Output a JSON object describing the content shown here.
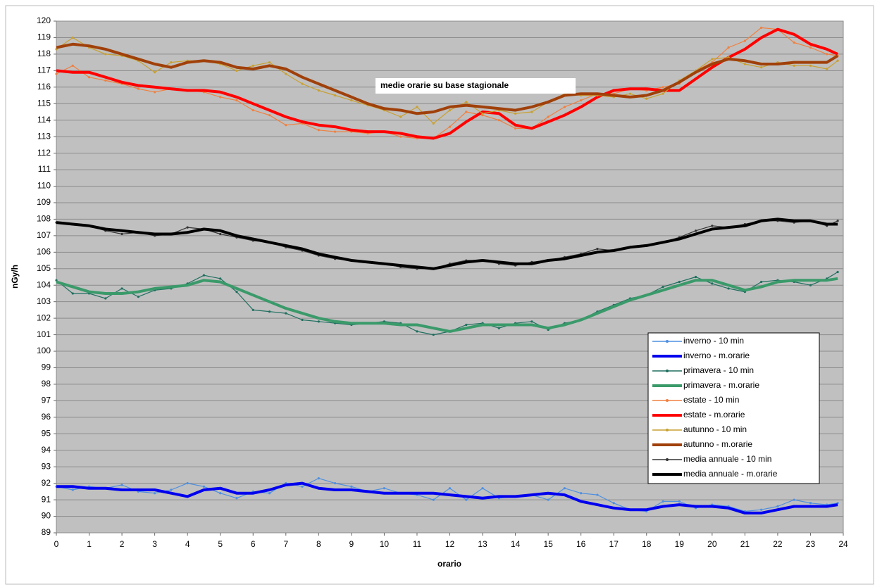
{
  "chart_data": {
    "type": "line",
    "annotation": "medie orarie su base stagionale",
    "x_label": "orario",
    "y_label": "nGy/h",
    "xlim": [
      0,
      24
    ],
    "ylim": [
      89,
      120
    ],
    "xticks": [
      0,
      1,
      2,
      3,
      4,
      5,
      6,
      7,
      8,
      9,
      10,
      11,
      12,
      13,
      14,
      15,
      16,
      17,
      18,
      19,
      20,
      21,
      22,
      23,
      24
    ],
    "yticks": [
      89,
      90,
      91,
      92,
      93,
      94,
      95,
      96,
      97,
      98,
      99,
      100,
      101,
      102,
      103,
      104,
      105,
      106,
      107,
      108,
      109,
      110,
      111,
      112,
      113,
      114,
      115,
      116,
      117,
      118,
      119,
      120
    ],
    "grid": true,
    "legend": "right",
    "x": [
      0,
      0.5,
      1,
      1.5,
      2,
      2.5,
      3,
      3.5,
      4,
      4.5,
      5,
      5.5,
      6,
      6.5,
      7,
      7.5,
      8,
      8.5,
      9,
      9.5,
      10,
      10.5,
      11,
      11.5,
      12,
      12.5,
      13,
      13.5,
      14,
      14.5,
      15,
      15.5,
      16,
      16.5,
      17,
      17.5,
      18,
      18.5,
      19,
      19.5,
      20,
      20.5,
      21,
      21.5,
      22,
      22.5,
      23,
      23.5,
      23.83
    ],
    "series": [
      {
        "name": "inverno - 10 min",
        "color": "#4f8fe0",
        "values": [
          91.8,
          91.6,
          91.8,
          91.7,
          91.9,
          91.5,
          91.4,
          91.6,
          92.0,
          91.8,
          91.4,
          91.1,
          91.5,
          91.4,
          92.0,
          91.8,
          92.3,
          92.0,
          91.8,
          91.5,
          91.7,
          91.4,
          91.3,
          91.0,
          91.7,
          91.0,
          91.7,
          91.1,
          91.2,
          91.3,
          91.0,
          91.7,
          91.4,
          91.3,
          90.8,
          90.4,
          90.3,
          90.9,
          90.9,
          90.5,
          90.7,
          90.6,
          90.3,
          90.4,
          90.6,
          91.0,
          90.8,
          90.7,
          90.8
        ]
      },
      {
        "name": "inverno - m.orarie",
        "color": "#0000ee",
        "values": [
          91.8,
          91.8,
          91.7,
          91.7,
          91.6,
          91.6,
          91.6,
          91.4,
          91.2,
          91.6,
          91.7,
          91.4,
          91.4,
          91.6,
          91.9,
          92.0,
          91.7,
          91.6,
          91.6,
          91.5,
          91.4,
          91.4,
          91.4,
          91.4,
          91.3,
          91.2,
          91.1,
          91.2,
          91.2,
          91.3,
          91.4,
          91.3,
          90.9,
          90.7,
          90.5,
          90.4,
          90.4,
          90.6,
          90.7,
          90.6,
          90.6,
          90.5,
          90.2,
          90.2,
          90.4,
          90.6,
          90.6,
          90.6,
          90.7
        ]
      },
      {
        "name": "primavera - 10 min",
        "color": "#1f6f5f",
        "values": [
          104.3,
          103.5,
          103.5,
          103.2,
          103.8,
          103.3,
          103.7,
          103.8,
          104.1,
          104.6,
          104.4,
          103.6,
          102.5,
          102.4,
          102.3,
          101.9,
          101.8,
          101.7,
          101.6,
          101.7,
          101.8,
          101.7,
          101.2,
          101.0,
          101.2,
          101.6,
          101.7,
          101.4,
          101.7,
          101.8,
          101.3,
          101.7,
          101.9,
          102.4,
          102.8,
          103.2,
          103.4,
          103.9,
          104.2,
          104.5,
          104.1,
          103.8,
          103.6,
          104.2,
          104.3,
          104.2,
          104.0,
          104.4,
          104.8
        ]
      },
      {
        "name": "primavera - m.orarie",
        "color": "#3a9a6a",
        "values": [
          104.2,
          103.9,
          103.6,
          103.5,
          103.5,
          103.6,
          103.8,
          103.9,
          104.0,
          104.3,
          104.2,
          103.8,
          103.4,
          103.0,
          102.6,
          102.3,
          102.0,
          101.8,
          101.7,
          101.7,
          101.7,
          101.6,
          101.6,
          101.4,
          101.2,
          101.4,
          101.6,
          101.6,
          101.6,
          101.6,
          101.4,
          101.6,
          101.9,
          102.3,
          102.7,
          103.1,
          103.4,
          103.7,
          104.0,
          104.3,
          104.3,
          104.0,
          103.7,
          103.9,
          104.2,
          104.3,
          104.3,
          104.3,
          104.4
        ]
      },
      {
        "name": "estate - 10 min",
        "color": "#f08040",
        "values": [
          116.8,
          117.3,
          116.6,
          116.4,
          116.2,
          115.9,
          115.7,
          115.9,
          115.8,
          115.7,
          115.4,
          115.2,
          114.6,
          114.3,
          113.7,
          113.8,
          113.4,
          113.3,
          113.3,
          113.2,
          113.3,
          113.0,
          112.9,
          112.9,
          113.6,
          114.5,
          114.3,
          114.0,
          113.5,
          113.5,
          114.2,
          114.8,
          115.2,
          115.6,
          115.6,
          115.9,
          115.8,
          116.0,
          116.2,
          117.0,
          117.5,
          118.4,
          118.8,
          119.6,
          119.5,
          118.7,
          118.4,
          118.0,
          117.9
        ]
      },
      {
        "name": "estate - m.orarie",
        "color": "#ff0000",
        "values": [
          117.0,
          116.9,
          116.9,
          116.6,
          116.3,
          116.1,
          116.0,
          115.9,
          115.8,
          115.8,
          115.7,
          115.4,
          115.0,
          114.6,
          114.2,
          113.9,
          113.7,
          113.6,
          113.4,
          113.3,
          113.3,
          113.2,
          113.0,
          112.9,
          113.2,
          113.9,
          114.5,
          114.4,
          113.7,
          113.5,
          113.9,
          114.3,
          114.8,
          115.4,
          115.8,
          115.9,
          115.9,
          115.8,
          115.8,
          116.5,
          117.2,
          117.8,
          118.3,
          119.0,
          119.5,
          119.2,
          118.6,
          118.3,
          118.0
        ]
      },
      {
        "name": "autunno - 10 min",
        "color": "#c8a030",
        "values": [
          118.3,
          119.0,
          118.4,
          118.0,
          117.9,
          117.6,
          116.9,
          117.5,
          117.6,
          117.6,
          117.4,
          117.0,
          117.3,
          117.5,
          116.8,
          116.2,
          115.8,
          115.5,
          115.2,
          114.9,
          114.6,
          114.2,
          114.8,
          113.8,
          114.6,
          115.1,
          114.4,
          114.6,
          114.4,
          114.5,
          115.1,
          115.6,
          115.5,
          115.5,
          115.4,
          115.6,
          115.3,
          115.6,
          116.4,
          117.0,
          117.7,
          117.8,
          117.4,
          117.2,
          117.5,
          117.3,
          117.3,
          117.1,
          117.6
        ]
      },
      {
        "name": "autunno - m.orarie",
        "color": "#a0400a",
        "values": [
          118.4,
          118.6,
          118.5,
          118.3,
          118.0,
          117.7,
          117.4,
          117.2,
          117.5,
          117.6,
          117.5,
          117.2,
          117.1,
          117.3,
          117.1,
          116.6,
          116.2,
          115.8,
          115.4,
          115.0,
          114.7,
          114.6,
          114.4,
          114.5,
          114.8,
          114.9,
          114.8,
          114.7,
          114.6,
          114.8,
          115.1,
          115.5,
          115.6,
          115.6,
          115.5,
          115.4,
          115.5,
          115.8,
          116.3,
          116.9,
          117.4,
          117.7,
          117.6,
          117.4,
          117.4,
          117.5,
          117.5,
          117.5,
          117.9
        ]
      },
      {
        "name": "media annuale - 10 min",
        "color": "#333333",
        "values": [
          107.8,
          107.7,
          107.6,
          107.3,
          107.1,
          107.2,
          107.0,
          107.1,
          107.5,
          107.4,
          107.1,
          106.9,
          106.7,
          106.6,
          106.3,
          106.1,
          105.8,
          105.6,
          105.5,
          105.4,
          105.3,
          105.1,
          105.0,
          105.0,
          105.3,
          105.5,
          105.5,
          105.3,
          105.2,
          105.4,
          105.5,
          105.7,
          105.9,
          106.2,
          106.1,
          106.3,
          106.4,
          106.6,
          106.9,
          107.3,
          107.6,
          107.5,
          107.7,
          107.9,
          107.9,
          107.8,
          107.9,
          107.6,
          107.9
        ]
      },
      {
        "name": "media annuale - m.orarie",
        "color": "#000000",
        "values": [
          107.8,
          107.7,
          107.6,
          107.4,
          107.3,
          107.2,
          107.1,
          107.1,
          107.2,
          107.4,
          107.3,
          107.0,
          106.8,
          106.6,
          106.4,
          106.2,
          105.9,
          105.7,
          105.5,
          105.4,
          105.3,
          105.2,
          105.1,
          105.0,
          105.2,
          105.4,
          105.5,
          105.4,
          105.3,
          105.3,
          105.5,
          105.6,
          105.8,
          106.0,
          106.1,
          106.3,
          106.4,
          106.6,
          106.8,
          107.1,
          107.4,
          107.5,
          107.6,
          107.9,
          108.0,
          107.9,
          107.9,
          107.7,
          107.7
        ]
      }
    ]
  }
}
